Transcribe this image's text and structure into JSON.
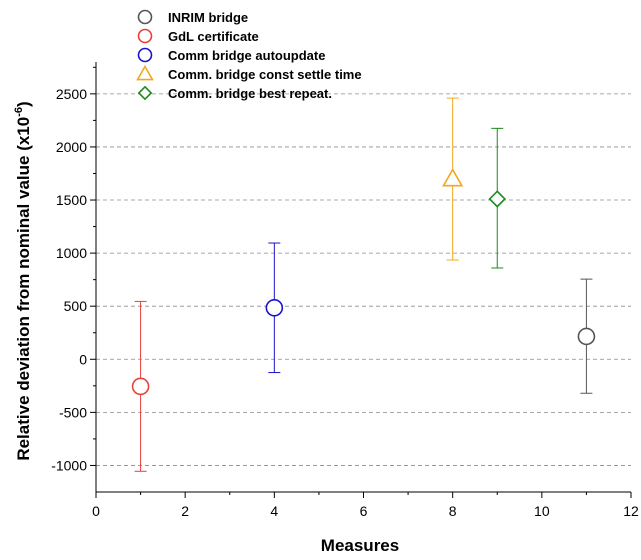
{
  "chart_data": {
    "type": "scatter",
    "title": "",
    "xlabel": "Measures",
    "ylabel": "Relative deviation from nominal value (x10",
    "ylabel_exponent": "-6",
    "ylabel_suffix": ")",
    "xlim": [
      0,
      12
    ],
    "ylim": [
      -1250,
      2800
    ],
    "x_ticks": [
      0,
      2,
      4,
      6,
      8,
      10,
      12
    ],
    "x_tick_labels": [
      "0",
      "2",
      "4",
      "6",
      "8",
      "10",
      "12"
    ],
    "y_ticks": [
      -1000,
      -500,
      0,
      500,
      1000,
      1500,
      2000,
      2500
    ],
    "y_tick_labels": [
      "-1000",
      "-500",
      "0",
      "500",
      "1000",
      "1500",
      "2000",
      "2500"
    ],
    "grid": "horizontal-dashed",
    "legend_position": "top-left",
    "series": [
      {
        "name": "INRIM bridge",
        "marker": "circle",
        "color": "#555555",
        "points": [
          {
            "x": 11,
            "y": 215,
            "lower": -320,
            "upper": 755
          }
        ]
      },
      {
        "name": "GdL certificate",
        "marker": "circle",
        "color": "#e8403a",
        "points": [
          {
            "x": 1,
            "y": -255,
            "lower": -1055,
            "upper": 545
          }
        ]
      },
      {
        "name": "Comm bridge  autoupdate",
        "marker": "circle",
        "color": "#1a14c8",
        "points": [
          {
            "x": 4,
            "y": 485,
            "lower": -125,
            "upper": 1095
          }
        ]
      },
      {
        "name": "Comm. bridge const settle time",
        "marker": "triangle",
        "color": "#f2a81d",
        "points": [
          {
            "x": 8,
            "y": 1700,
            "lower": 935,
            "upper": 2460
          }
        ]
      },
      {
        "name": "Comm. bridge best repeat.",
        "marker": "diamond",
        "color": "#1a8a1a",
        "points": [
          {
            "x": 9,
            "y": 1510,
            "lower": 860,
            "upper": 2175
          }
        ]
      }
    ]
  }
}
